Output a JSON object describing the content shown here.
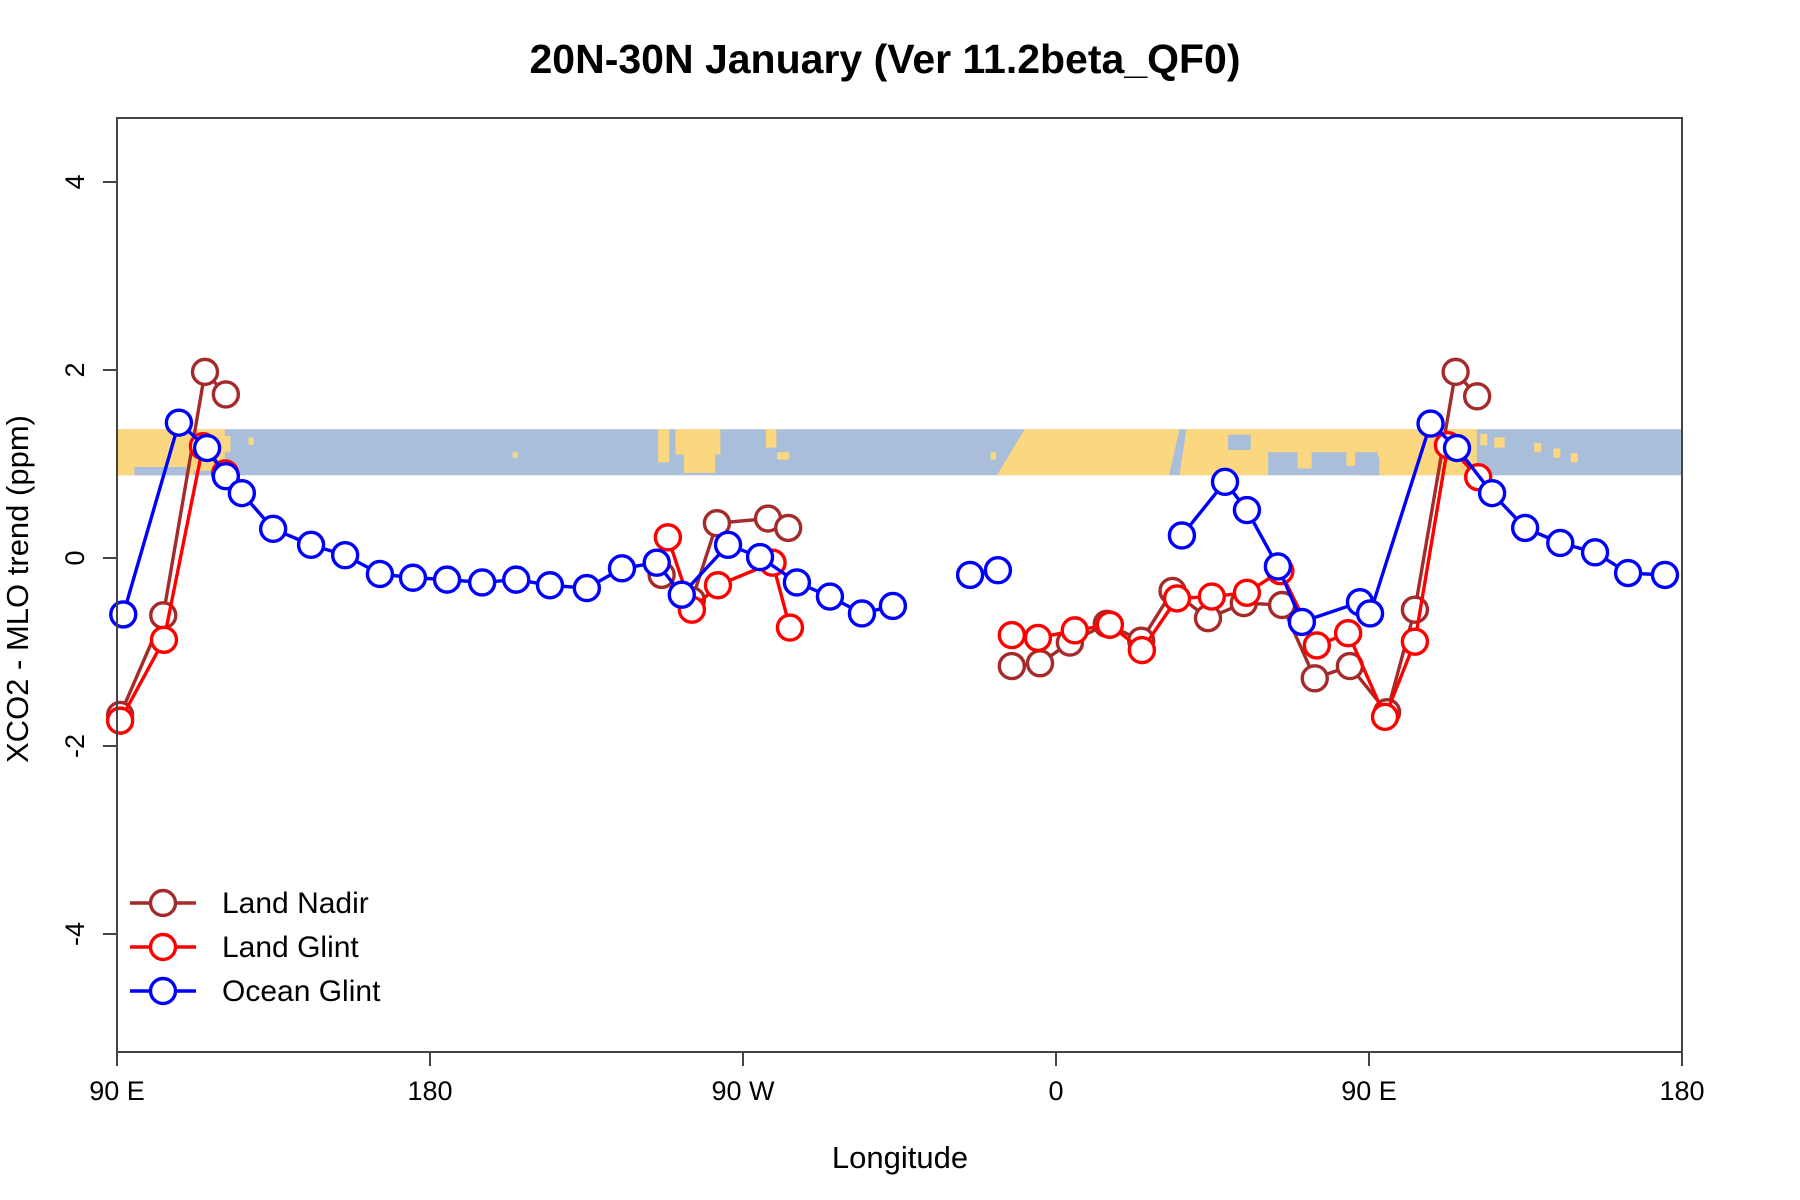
{
  "title": "20N-30N January (Ver 11.2beta_QF0)",
  "legend": {
    "items": [
      {
        "label": "Land Nadir",
        "color": "#A52A2A"
      },
      {
        "label": "Land Glint",
        "color": "#FF0000"
      },
      {
        "label": "Ocean Glint",
        "color": "#0000FF"
      }
    ]
  },
  "colors": {
    "land_nadir": "#A52A2A",
    "land_glint": "#FF0000",
    "ocean_glint": "#0000FF",
    "band_ocean": "#a9bedb",
    "band_land": "#fbd880",
    "axis": "#444444",
    "marker_fill": "#ffffff"
  },
  "chart_data": {
    "type": "line",
    "title": "20N-30N January (Ver 11.2beta_QF0)",
    "xlabel": "Longitude",
    "ylabel": "XCO2 - MLO trend (ppm)",
    "grid": false,
    "legend_position": "inside bottom-left",
    "x_axis": {
      "unit": "longitude, wrapped 90E through 180, 90W, 0, 90E to 180",
      "min": 90,
      "max": 540,
      "ticks": [
        {
          "lon": 90,
          "label": "90 E"
        },
        {
          "lon": 180,
          "label": "180"
        },
        {
          "lon": 270,
          "label": "90 W"
        },
        {
          "lon": 360,
          "label": "0"
        },
        {
          "lon": 450,
          "label": "90 E"
        },
        {
          "lon": 540,
          "label": "180"
        }
      ]
    },
    "y_axis": {
      "min": -5.3,
      "max": 4.7,
      "ticks": [
        {
          "v": -4,
          "label": "-4"
        },
        {
          "v": -2,
          "label": "-2"
        },
        {
          "v": 0,
          "label": "0"
        },
        {
          "v": 2,
          "label": "2"
        },
        {
          "v": 4,
          "label": "4"
        }
      ]
    },
    "map_band": {
      "description": "mini world-map strip of the 20N-30N latitude belt drawn across the plot",
      "y_top_ppm": 1.37,
      "y_bottom_ppm": 0.88,
      "ocean_color": "#a9bedb",
      "land_color": "#fbd880",
      "land_segments": [
        [
          90,
          121,
          0,
          1
        ],
        [
          120.8,
          122.6,
          0.15,
          0.5
        ],
        [
          127.8,
          129.3,
          0.18,
          0.34
        ],
        [
          203.8,
          205.2,
          0.5,
          0.62
        ],
        [
          245.6,
          248.8,
          0,
          0.72
        ],
        [
          250.6,
          263.5,
          0,
          0.55
        ],
        [
          253,
          262,
          0.55,
          0.95
        ],
        [
          276.6,
          279.6,
          0,
          0.4
        ],
        [
          279.8,
          283.2,
          0.5,
          0.66
        ],
        [
          341.2,
          342.8,
          0.5,
          0.66
        ],
        [
          421,
          452.5,
          0,
          0.5
        ],
        [
          429.5,
          433.5,
          0.5,
          0.85
        ],
        [
          443.5,
          446,
          0.5,
          0.8
        ],
        [
          452.5,
          481,
          0,
          1
        ],
        [
          482,
          484,
          0.1,
          0.35
        ],
        [
          486,
          489,
          0.18,
          0.4
        ],
        [
          497.5,
          499.5,
          0.3,
          0.5
        ],
        [
          503,
          505,
          0.42,
          0.62
        ],
        [
          508,
          510,
          0.52,
          0.72
        ]
      ],
      "land_polygons": [
        {
          "name": "africa",
          "pts": [
            [
              351,
              0
            ],
            [
              395.5,
              0
            ],
            [
              392.5,
              1
            ],
            [
              343,
              1
            ]
          ]
        },
        {
          "name": "arabia",
          "pts": [
            [
              397.5,
              0
            ],
            [
              421,
              0
            ],
            [
              421,
              1
            ],
            [
              395.5,
              1
            ]
          ]
        }
      ],
      "ocean_patches": [
        [
          95,
          110,
          0.82,
          1
        ],
        [
          112,
          117,
          0.9,
          1
        ],
        [
          409.5,
          416,
          0.12,
          0.45
        ],
        [
          447,
          453,
          0.6,
          1
        ]
      ]
    },
    "series": [
      {
        "name": "Land Nadir",
        "color": "#A52A2A",
        "marker": "open-circle",
        "segments": [
          [
            [
              90.9,
              -1.67
            ],
            [
              103.3,
              -0.61
            ],
            [
              115.3,
              1.98
            ],
            [
              121.3,
              1.74
            ]
          ],
          [
            [
              246.6,
              -0.18
            ],
            [
              255.3,
              -0.45
            ],
            [
              262.5,
              0.37
            ],
            [
              277.2,
              0.42
            ],
            [
              283.0,
              0.32
            ]
          ],
          [
            [
              347.3,
              -1.15
            ],
            [
              355.4,
              -1.12
            ],
            [
              364.0,
              -0.9
            ],
            [
              374.6,
              -0.7
            ],
            [
              384.5,
              -0.88
            ],
            [
              393.5,
              -0.35
            ],
            [
              403.7,
              -0.64
            ],
            [
              414.0,
              -0.48
            ],
            [
              425.0,
              -0.5
            ],
            [
              434.4,
              -1.28
            ],
            [
              444.5,
              -1.15
            ],
            [
              455.2,
              -1.64
            ],
            [
              463.2,
              -0.55
            ],
            [
              474.9,
              1.98
            ],
            [
              481.1,
              1.72
            ]
          ]
        ]
      },
      {
        "name": "Land Glint",
        "color": "#FF0000",
        "marker": "open-circle",
        "segments": [
          [
            [
              90.9,
              -1.73
            ],
            [
              103.5,
              -0.87
            ],
            [
              114.7,
              1.19
            ],
            [
              121.1,
              0.9
            ]
          ],
          [
            [
              248.4,
              0.22
            ],
            [
              255.3,
              -0.55
            ],
            [
              262.8,
              -0.29
            ],
            [
              278.5,
              -0.05
            ],
            [
              283.5,
              -0.74
            ]
          ],
          [
            [
              347.3,
              -0.82
            ],
            [
              354.8,
              -0.85
            ],
            [
              365.4,
              -0.77
            ],
            [
              375.5,
              -0.71
            ],
            [
              384.7,
              -0.98
            ],
            [
              394.8,
              -0.43
            ],
            [
              404.8,
              -0.41
            ],
            [
              414.9,
              -0.37
            ],
            [
              424.5,
              -0.14
            ],
            [
              435.0,
              -0.93
            ],
            [
              444.0,
              -0.8
            ],
            [
              454.6,
              -1.69
            ],
            [
              463.2,
              -0.89
            ],
            [
              472.7,
              1.2
            ],
            [
              481.4,
              0.86
            ]
          ]
        ]
      },
      {
        "name": "Ocean Glint",
        "color": "#0000FF",
        "marker": "open-circle",
        "segments": [
          [
            [
              91.8,
              -0.6
            ],
            [
              107.8,
              1.44
            ],
            [
              115.9,
              1.17
            ],
            [
              121.3,
              0.87
            ],
            [
              125.9,
              0.69
            ],
            [
              134.9,
              0.31
            ],
            [
              145.8,
              0.14
            ],
            [
              155.6,
              0.03
            ],
            [
              165.6,
              -0.17
            ],
            [
              175.1,
              -0.21
            ],
            [
              184.9,
              -0.23
            ],
            [
              195.0,
              -0.26
            ],
            [
              204.8,
              -0.23
            ],
            [
              214.5,
              -0.29
            ],
            [
              225.1,
              -0.32
            ],
            [
              235.2,
              -0.11
            ],
            [
              245.2,
              -0.05
            ],
            [
              252.4,
              -0.39
            ],
            [
              265.7,
              0.14
            ],
            [
              274.9,
              0.01
            ],
            [
              285.5,
              -0.26
            ],
            [
              295.0,
              -0.41
            ],
            [
              304.2,
              -0.59
            ],
            [
              313.1,
              -0.51
            ]
          ],
          [
            [
              335.3,
              -0.18
            ],
            [
              343.3,
              -0.13
            ]
          ],
          [
            [
              396.2,
              0.24
            ],
            [
              408.6,
              0.81
            ],
            [
              414.9,
              0.51
            ],
            [
              423.8,
              -0.09
            ],
            [
              430.7,
              -0.68
            ],
            [
              447.4,
              -0.47
            ],
            [
              450.3,
              -0.59
            ],
            [
              467.7,
              1.43
            ],
            [
              475.3,
              1.17
            ],
            [
              485.4,
              0.69
            ],
            [
              494.9,
              0.32
            ],
            [
              505.0,
              0.16
            ],
            [
              515.0,
              0.06
            ],
            [
              524.5,
              -0.16
            ],
            [
              535.1,
              -0.18
            ]
          ]
        ]
      }
    ]
  }
}
